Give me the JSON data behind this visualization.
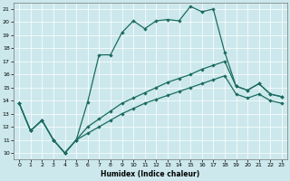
{
  "xlabel": "Humidex (Indice chaleur)",
  "xlim_min": -0.5,
  "xlim_max": 23.5,
  "ylim_min": 9.5,
  "ylim_max": 21.5,
  "xticks": [
    0,
    1,
    2,
    3,
    4,
    5,
    6,
    7,
    8,
    9,
    10,
    11,
    12,
    13,
    14,
    15,
    16,
    17,
    18,
    19,
    20,
    21,
    22,
    23
  ],
  "yticks": [
    10,
    11,
    12,
    13,
    14,
    15,
    16,
    17,
    18,
    19,
    20,
    21
  ],
  "bg_color": "#cce8ec",
  "line_color": "#1a6b60",
  "lines": [
    {
      "x": [
        0,
        1,
        2,
        3,
        4,
        5,
        6,
        7,
        8,
        9,
        10,
        11,
        12,
        13,
        14,
        15,
        16,
        17,
        18,
        19,
        20,
        21,
        22,
        23
      ],
      "y": [
        13.8,
        11.7,
        12.5,
        11.0,
        10.0,
        11.0,
        13.9,
        17.5,
        17.5,
        19.2,
        20.1,
        19.5,
        20.1,
        20.2,
        20.1,
        21.2,
        20.8,
        21.0,
        17.7,
        15.1,
        14.8,
        15.3,
        14.5,
        14.3
      ]
    },
    {
      "x": [
        0,
        1,
        2,
        3,
        4,
        5,
        6,
        7,
        8,
        9,
        10,
        11,
        12,
        13,
        14,
        15,
        16,
        17,
        18,
        19,
        20,
        21,
        22,
        23
      ],
      "y": [
        13.8,
        11.7,
        12.5,
        11.0,
        10.0,
        11.0,
        12.0,
        12.6,
        13.2,
        13.8,
        14.2,
        14.6,
        15.0,
        15.4,
        15.7,
        16.0,
        16.4,
        16.7,
        17.0,
        15.1,
        14.8,
        15.3,
        14.5,
        14.3
      ]
    },
    {
      "x": [
        0,
        1,
        2,
        3,
        4,
        5,
        6,
        7,
        8,
        9,
        10,
        11,
        12,
        13,
        14,
        15,
        16,
        17,
        18,
        19,
        20,
        21,
        22,
        23
      ],
      "y": [
        13.8,
        11.7,
        12.5,
        11.0,
        10.0,
        11.0,
        11.5,
        12.0,
        12.5,
        13.0,
        13.4,
        13.8,
        14.1,
        14.4,
        14.7,
        15.0,
        15.3,
        15.6,
        15.9,
        14.5,
        14.2,
        14.5,
        14.0,
        13.8
      ]
    }
  ]
}
